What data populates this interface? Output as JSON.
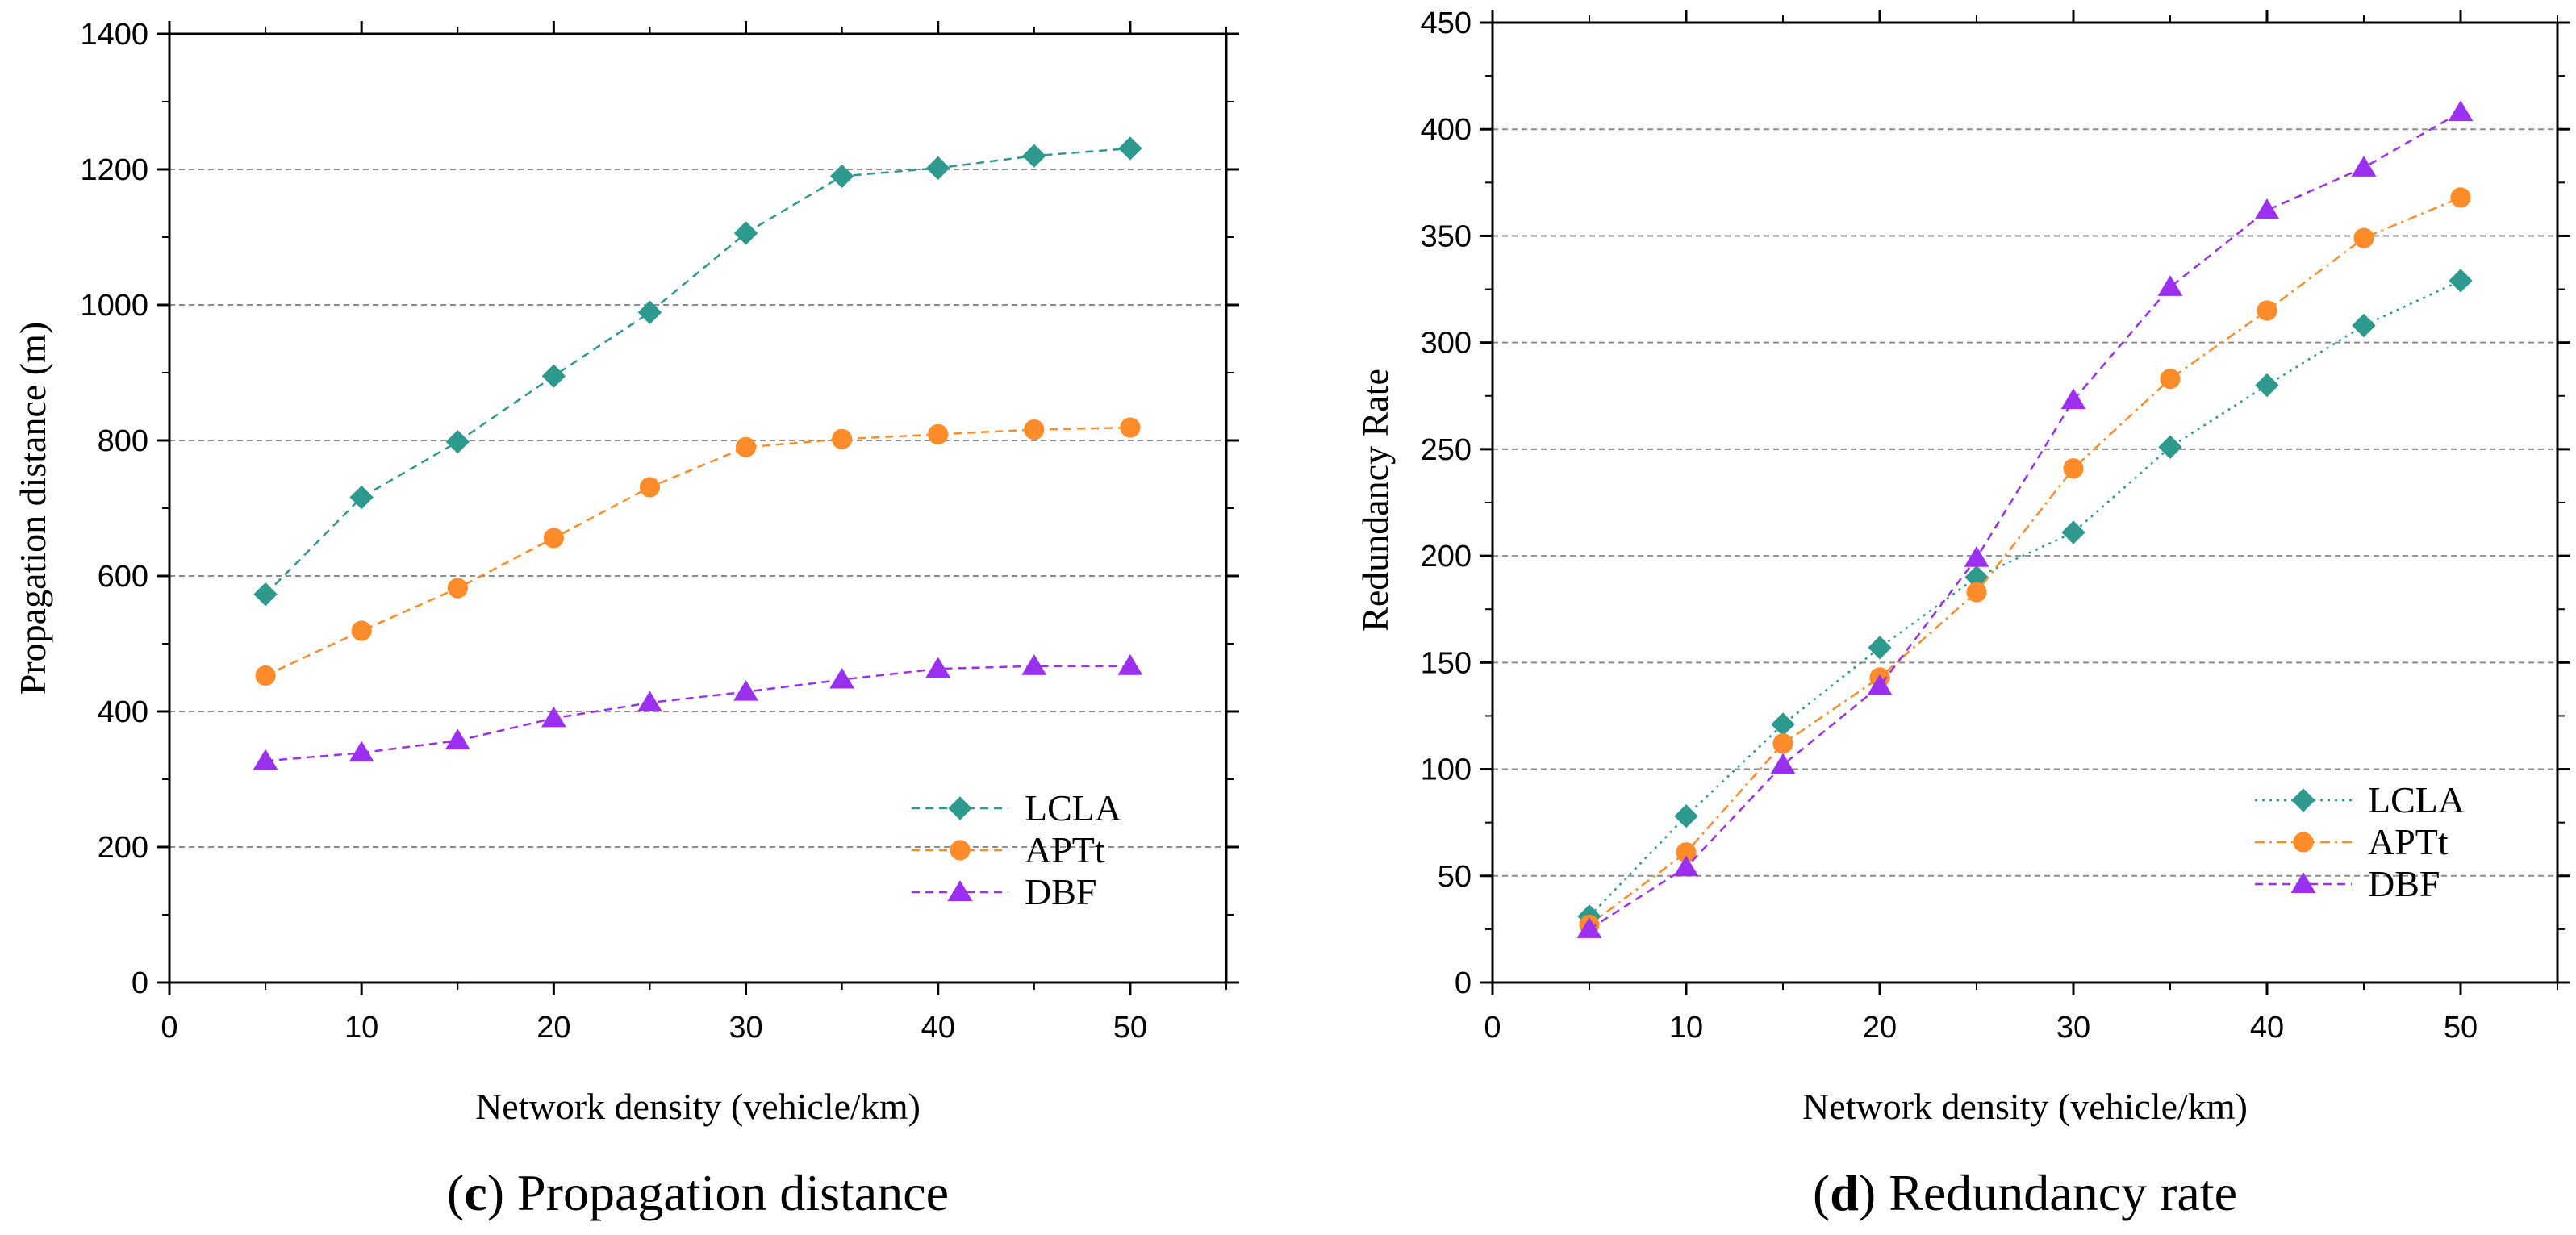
{
  "colors": {
    "LCLA": "#2e9a8e",
    "APTt": "#ff8c2a",
    "DBF": "#9b30f0",
    "grid": "#8c8c8c",
    "axis": "#000000"
  },
  "chart_data": [
    {
      "type": "line",
      "title": "Propagation distance",
      "caption_letter": "c",
      "xlabel": "Network density (vehicle/km)",
      "ylabel": "Propagation distance (m)",
      "xlim": [
        0,
        55
      ],
      "ylim": [
        0,
        1400
      ],
      "xticks": [
        0,
        10,
        20,
        30,
        40,
        50
      ],
      "yticks": [
        0,
        200,
        400,
        600,
        800,
        1000,
        1200,
        1400
      ],
      "grid_y": [
        200,
        400,
        600,
        800,
        1000,
        1200
      ],
      "legend_position": "bottom-right",
      "x": [
        5,
        10,
        15,
        20,
        25,
        30,
        35,
        40,
        45,
        50
      ],
      "series": [
        {
          "name": "LCLA",
          "marker": "diamond",
          "dash": "dashed",
          "values": [
            573,
            716,
            798,
            895,
            989,
            1106,
            1190,
            1202,
            1220,
            1231
          ]
        },
        {
          "name": "APTt",
          "marker": "circle",
          "dash": "dashed",
          "values": [
            453,
            519,
            582,
            656,
            731,
            790,
            802,
            809,
            816,
            819
          ]
        },
        {
          "name": "DBF",
          "marker": "triangle",
          "dash": "dashed",
          "values": [
            327,
            339,
            357,
            390,
            413,
            429,
            447,
            463,
            467,
            467
          ]
        }
      ]
    },
    {
      "type": "line",
      "title": "Redundancy rate",
      "caption_letter": "d",
      "xlabel": "Network density (vehicle/km)",
      "ylabel": "Redundancy Rate",
      "xlim": [
        0,
        55
      ],
      "ylim": [
        0,
        450
      ],
      "xticks": [
        0,
        10,
        20,
        30,
        40,
        50
      ],
      "yticks": [
        0,
        50,
        100,
        150,
        200,
        250,
        300,
        350,
        400,
        450
      ],
      "grid_y": [
        50,
        100,
        150,
        200,
        250,
        300,
        350,
        400
      ],
      "legend_position": "bottom-right",
      "x": [
        5,
        10,
        15,
        20,
        25,
        30,
        35,
        40,
        45,
        50
      ],
      "series": [
        {
          "name": "LCLA",
          "marker": "diamond",
          "dash": "dotted",
          "values": [
            31,
            78,
            121,
            157,
            190,
            211,
            251,
            280,
            308,
            329
          ]
        },
        {
          "name": "APTt",
          "marker": "circle",
          "dash": "dashdot",
          "values": [
            27,
            61,
            112,
            143,
            183,
            241,
            283,
            315,
            349,
            368
          ]
        },
        {
          "name": "DBF",
          "marker": "triangle",
          "dash": "dashed",
          "values": [
            25,
            54,
            102,
            139,
            199,
            273,
            326,
            362,
            382,
            408
          ]
        }
      ]
    }
  ]
}
